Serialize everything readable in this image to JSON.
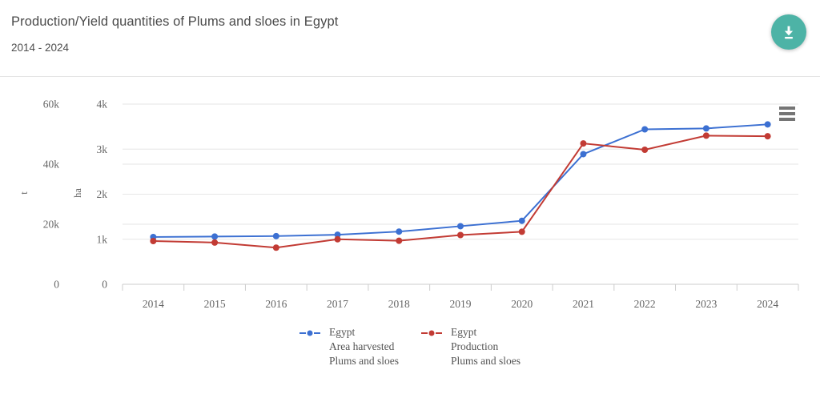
{
  "header": {
    "title": "Production/Yield quantities of Plums and sloes in Egypt",
    "subtitle": "2014 - 2024"
  },
  "controls": {
    "download_icon": "download-arrow-to-bar",
    "context_menu_icon": "hamburger"
  },
  "colors": {
    "accent_teal": "#4DB3A6",
    "series_blue": "#3C70D2",
    "series_red": "#C23B34",
    "gridline": "#e6e6e6",
    "axis_line": "#cccccc",
    "text_gray": "#666666"
  },
  "chart_data": {
    "type": "line",
    "title": "Production/Yield quantities of Plums and sloes in Egypt",
    "subtitle": "2014 - 2024",
    "grid": true,
    "legend_position": "bottom",
    "categories": [
      "2014",
      "2015",
      "2016",
      "2017",
      "2018",
      "2019",
      "2020",
      "2021",
      "2022",
      "2023",
      "2024"
    ],
    "y_axes": [
      {
        "id": "t",
        "title": "t",
        "max": 60000,
        "ticks": [
          [
            "0",
            0
          ],
          [
            "20k",
            20000
          ],
          [
            "40k",
            40000
          ],
          [
            "60k",
            60000
          ]
        ]
      },
      {
        "id": "ha",
        "title": "ha",
        "max": 4000,
        "ticks": [
          [
            "0",
            0
          ],
          [
            "1k",
            1000
          ],
          [
            "2k",
            2000
          ],
          [
            "3k",
            3000
          ],
          [
            "4k",
            4000
          ]
        ]
      }
    ],
    "series": [
      {
        "name": "Egypt Area harvested Plums and sloes",
        "legend_lines": [
          "Egypt",
          "Area harvested",
          "Plums and sloes"
        ],
        "axis": "ha",
        "color": "#3C70D2",
        "unit": "ha",
        "values": [
          1050,
          1060,
          1070,
          1100,
          1170,
          1290,
          1410,
          2890,
          3440,
          3460,
          3550
        ]
      },
      {
        "name": "Egypt Production Plums and sloes",
        "legend_lines": [
          "Egypt",
          "Production",
          "Plums and sloes"
        ],
        "axis": "t",
        "color": "#C23B34",
        "unit": "t",
        "values": [
          14400,
          13900,
          12200,
          15000,
          14500,
          16400,
          17500,
          46900,
          44800,
          49500,
          49300
        ]
      }
    ]
  }
}
